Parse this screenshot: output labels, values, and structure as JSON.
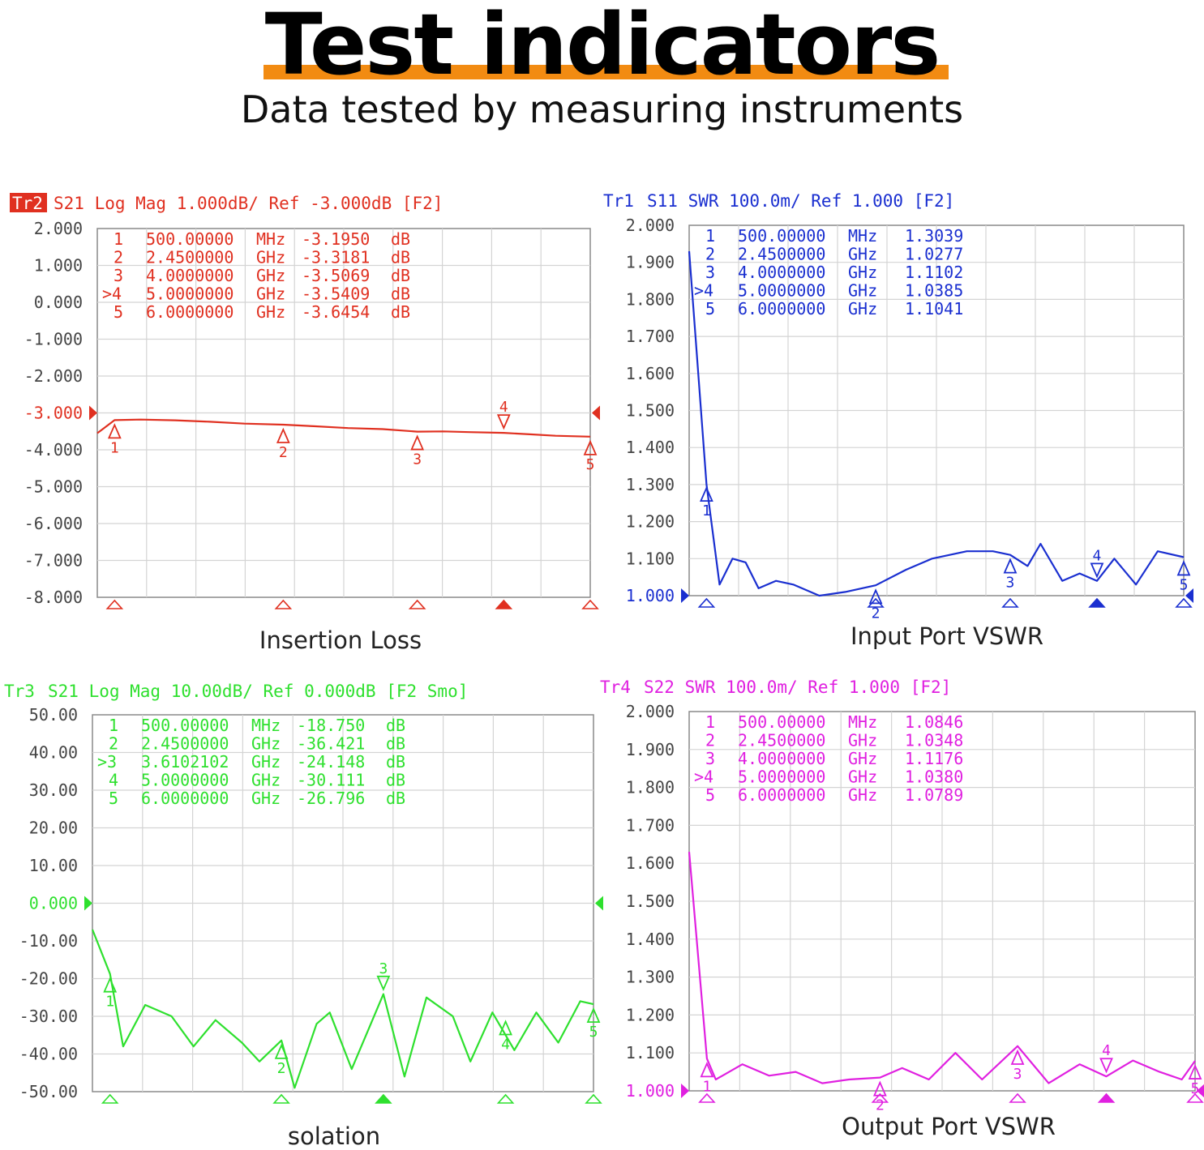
{
  "header": {
    "title": "Test indicators",
    "subtitle": "Data tested by measuring instruments"
  },
  "chart_data": [
    {
      "type": "line",
      "id": "insertion",
      "color": "#e03020",
      "header_trace": "Tr2",
      "header_text": "S21 Log Mag 1.000dB/ Ref -3.000dB [F2]",
      "caption": "Insertion Loss",
      "ylim": [
        -8,
        2
      ],
      "ref_value": -3,
      "y_ticks": [
        "2.000",
        "1.000",
        "0.000",
        "-1.000",
        "-2.000",
        "-3.000",
        "-4.000",
        "-5.000",
        "-6.000",
        "-7.000",
        "-8.000"
      ],
      "x_range_ghz": [
        0.3,
        6.0
      ],
      "markers": [
        {
          "num": "1",
          "freq": "500.00000",
          "unit": "MHz",
          "value": "-3.1950",
          "vunit": "dB",
          "x_ghz": 0.5,
          "y": -3.195,
          "active": false
        },
        {
          "num": "2",
          "freq": "2.4500000",
          "unit": "GHz",
          "value": "-3.3181",
          "vunit": "dB",
          "x_ghz": 2.45,
          "y": -3.318,
          "active": false
        },
        {
          "num": "3",
          "freq": "4.0000000",
          "unit": "GHz",
          "value": "-3.5069",
          "vunit": "dB",
          "x_ghz": 4.0,
          "y": -3.507,
          "active": false
        },
        {
          "num": "4",
          "freq": "5.0000000",
          "unit": "GHz",
          "value": "-3.5409",
          "vunit": "dB",
          "x_ghz": 5.0,
          "y": -3.541,
          "active": true
        },
        {
          "num": "5",
          "freq": "6.0000000",
          "unit": "GHz",
          "value": "-3.6454",
          "vunit": "dB",
          "x_ghz": 6.0,
          "y": -3.645,
          "active": false
        }
      ],
      "trace": [
        [
          0.3,
          -3.55
        ],
        [
          0.5,
          -3.195
        ],
        [
          0.8,
          -3.18
        ],
        [
          1.2,
          -3.2
        ],
        [
          1.6,
          -3.24
        ],
        [
          2.0,
          -3.29
        ],
        [
          2.45,
          -3.318
        ],
        [
          2.8,
          -3.36
        ],
        [
          3.2,
          -3.41
        ],
        [
          3.6,
          -3.44
        ],
        [
          4.0,
          -3.507
        ],
        [
          4.3,
          -3.5
        ],
        [
          4.6,
          -3.52
        ],
        [
          5.0,
          -3.541
        ],
        [
          5.3,
          -3.58
        ],
        [
          5.6,
          -3.62
        ],
        [
          6.0,
          -3.645
        ]
      ]
    },
    {
      "type": "line",
      "id": "input-vswr",
      "color": "#1a2fd0",
      "header_trace": "Tr1",
      "header_text": "S11 SWR 100.0m/ Ref 1.000 [F2]",
      "caption": "Input Port VSWR",
      "ylim": [
        1.0,
        2.0
      ],
      "ref_value": 1.0,
      "y_ticks": [
        "2.000",
        "1.900",
        "1.800",
        "1.700",
        "1.600",
        "1.500",
        "1.400",
        "1.300",
        "1.200",
        "1.100",
        "1.000"
      ],
      "x_range_ghz": [
        0.3,
        6.0
      ],
      "markers": [
        {
          "num": "1",
          "freq": "500.00000",
          "unit": "MHz",
          "value": "1.3039",
          "vunit": "",
          "x_ghz": 0.5,
          "y": 1.3039,
          "active": false
        },
        {
          "num": "2",
          "freq": "2.4500000",
          "unit": "GHz",
          "value": "1.0277",
          "vunit": "",
          "x_ghz": 2.45,
          "y": 1.0277,
          "active": false
        },
        {
          "num": "3",
          "freq": "4.0000000",
          "unit": "GHz",
          "value": "1.1102",
          "vunit": "",
          "x_ghz": 4.0,
          "y": 1.1102,
          "active": false
        },
        {
          "num": "4",
          "freq": "5.0000000",
          "unit": "GHz",
          "value": "1.0385",
          "vunit": "",
          "x_ghz": 5.0,
          "y": 1.0385,
          "active": true
        },
        {
          "num": "5",
          "freq": "6.0000000",
          "unit": "GHz",
          "value": "1.1041",
          "vunit": "",
          "x_ghz": 6.0,
          "y": 1.1041,
          "active": false
        }
      ],
      "trace": [
        [
          0.3,
          1.93
        ],
        [
          0.5,
          1.3
        ],
        [
          0.65,
          1.03
        ],
        [
          0.8,
          1.1
        ],
        [
          0.95,
          1.09
        ],
        [
          1.1,
          1.02
        ],
        [
          1.3,
          1.04
        ],
        [
          1.5,
          1.03
        ],
        [
          1.8,
          1.0
        ],
        [
          2.1,
          1.01
        ],
        [
          2.45,
          1.028
        ],
        [
          2.8,
          1.07
        ],
        [
          3.1,
          1.1
        ],
        [
          3.5,
          1.12
        ],
        [
          3.8,
          1.12
        ],
        [
          4.0,
          1.11
        ],
        [
          4.2,
          1.08
        ],
        [
          4.35,
          1.14
        ],
        [
          4.6,
          1.04
        ],
        [
          4.8,
          1.06
        ],
        [
          5.0,
          1.04
        ],
        [
          5.2,
          1.1
        ],
        [
          5.45,
          1.03
        ],
        [
          5.7,
          1.12
        ],
        [
          6.0,
          1.104
        ]
      ]
    },
    {
      "type": "line",
      "id": "isolation",
      "color": "#2ee02e",
      "header_trace": "Tr3",
      "header_text": "S21 Log Mag 10.00dB/ Ref 0.000dB [F2 Smo]",
      "caption": "solation",
      "ylim": [
        -50,
        50
      ],
      "ref_value": 0,
      "y_ticks": [
        "50.00",
        "40.00",
        "30.00",
        "20.00",
        "10.00",
        "0.000",
        "-10.00",
        "-20.00",
        "-30.00",
        "-40.00",
        "-50.00"
      ],
      "x_range_ghz": [
        0.3,
        6.0
      ],
      "markers": [
        {
          "num": "1",
          "freq": "500.00000",
          "unit": "MHz",
          "value": "-18.750",
          "vunit": "dB",
          "x_ghz": 0.5,
          "y": -18.75,
          "active": false
        },
        {
          "num": "2",
          "freq": "2.4500000",
          "unit": "GHz",
          "value": "-36.421",
          "vunit": "dB",
          "x_ghz": 2.45,
          "y": -36.421,
          "active": false
        },
        {
          "num": "3",
          "freq": "3.6102102",
          "unit": "GHz",
          "value": "-24.148",
          "vunit": "dB",
          "x_ghz": 3.61,
          "y": -24.148,
          "active": true
        },
        {
          "num": "4",
          "freq": "5.0000000",
          "unit": "GHz",
          "value": "-30.111",
          "vunit": "dB",
          "x_ghz": 5.0,
          "y": -30.111,
          "active": false
        },
        {
          "num": "5",
          "freq": "6.0000000",
          "unit": "GHz",
          "value": "-26.796",
          "vunit": "dB",
          "x_ghz": 6.0,
          "y": -26.796,
          "active": false
        }
      ],
      "trace": [
        [
          0.3,
          -7
        ],
        [
          0.5,
          -18.75
        ],
        [
          0.65,
          -38
        ],
        [
          0.9,
          -27
        ],
        [
          1.2,
          -30
        ],
        [
          1.45,
          -38
        ],
        [
          1.7,
          -31
        ],
        [
          2.0,
          -37
        ],
        [
          2.2,
          -42
        ],
        [
          2.45,
          -36.4
        ],
        [
          2.6,
          -49
        ],
        [
          2.85,
          -32
        ],
        [
          3.0,
          -29
        ],
        [
          3.25,
          -44
        ],
        [
          3.61,
          -24.1
        ],
        [
          3.85,
          -46
        ],
        [
          4.1,
          -25
        ],
        [
          4.4,
          -30
        ],
        [
          4.6,
          -42
        ],
        [
          4.85,
          -29
        ],
        [
          5.1,
          -39
        ],
        [
          5.35,
          -29
        ],
        [
          5.6,
          -37
        ],
        [
          5.85,
          -26
        ],
        [
          6.0,
          -26.8
        ]
      ]
    },
    {
      "type": "line",
      "id": "output-vswr",
      "color": "#e020e0",
      "header_trace": "Tr4",
      "header_text": "S22 SWR 100.0m/ Ref 1.000 [F2]",
      "caption": "Output Port VSWR",
      "ylim": [
        1.0,
        2.0
      ],
      "ref_value": 1.0,
      "y_ticks": [
        "2.000",
        "1.900",
        "1.800",
        "1.700",
        "1.600",
        "1.500",
        "1.400",
        "1.300",
        "1.200",
        "1.100",
        "1.000"
      ],
      "x_range_ghz": [
        0.3,
        6.0
      ],
      "markers": [
        {
          "num": "1",
          "freq": "500.00000",
          "unit": "MHz",
          "value": "1.0846",
          "vunit": "",
          "x_ghz": 0.5,
          "y": 1.0846,
          "active": false
        },
        {
          "num": "2",
          "freq": "2.4500000",
          "unit": "GHz",
          "value": "1.0348",
          "vunit": "",
          "x_ghz": 2.45,
          "y": 1.0348,
          "active": false
        },
        {
          "num": "3",
          "freq": "4.0000000",
          "unit": "GHz",
          "value": "1.1176",
          "vunit": "",
          "x_ghz": 4.0,
          "y": 1.1176,
          "active": false
        },
        {
          "num": "4",
          "freq": "5.0000000",
          "unit": "GHz",
          "value": "1.0380",
          "vunit": "",
          "x_ghz": 5.0,
          "y": 1.038,
          "active": true
        },
        {
          "num": "5",
          "freq": "6.0000000",
          "unit": "GHz",
          "value": "1.0789",
          "vunit": "",
          "x_ghz": 6.0,
          "y": 1.0789,
          "active": false
        }
      ],
      "trace": [
        [
          0.3,
          1.63
        ],
        [
          0.5,
          1.085
        ],
        [
          0.6,
          1.03
        ],
        [
          0.9,
          1.07
        ],
        [
          1.2,
          1.04
        ],
        [
          1.5,
          1.05
        ],
        [
          1.8,
          1.02
        ],
        [
          2.1,
          1.03
        ],
        [
          2.45,
          1.035
        ],
        [
          2.7,
          1.06
        ],
        [
          3.0,
          1.03
        ],
        [
          3.3,
          1.1
        ],
        [
          3.6,
          1.03
        ],
        [
          4.0,
          1.118
        ],
        [
          4.35,
          1.02
        ],
        [
          4.7,
          1.07
        ],
        [
          5.0,
          1.038
        ],
        [
          5.3,
          1.08
        ],
        [
          5.6,
          1.05
        ],
        [
          5.85,
          1.03
        ],
        [
          6.0,
          1.079
        ]
      ]
    }
  ]
}
